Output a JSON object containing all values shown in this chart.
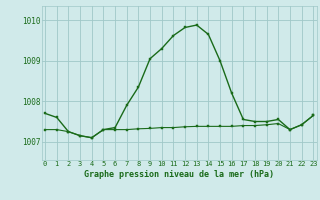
{
  "x": [
    0,
    1,
    2,
    3,
    4,
    5,
    6,
    7,
    8,
    9,
    10,
    11,
    12,
    13,
    14,
    15,
    16,
    17,
    18,
    19,
    20,
    21,
    22,
    23
  ],
  "y_main": [
    1007.7,
    1007.6,
    1007.25,
    1007.15,
    1007.1,
    1007.3,
    1007.35,
    1007.9,
    1008.35,
    1009.05,
    1009.3,
    1009.62,
    1009.82,
    1009.88,
    1009.65,
    1009.0,
    1008.2,
    1007.55,
    1007.5,
    1007.5,
    1007.55,
    1007.3,
    1007.42,
    1007.65
  ],
  "y_flat": [
    1007.3,
    1007.3,
    1007.25,
    1007.15,
    1007.1,
    1007.3,
    1007.3,
    1007.3,
    1007.32,
    1007.33,
    1007.35,
    1007.35,
    1007.37,
    1007.38,
    1007.38,
    1007.38,
    1007.38,
    1007.4,
    1007.4,
    1007.42,
    1007.45,
    1007.3,
    1007.42,
    1007.65
  ],
  "line_color": "#1a6b1a",
  "marker_color": "#1a6b1a",
  "bg_color": "#d0eaea",
  "grid_color": "#a0c8c8",
  "tick_label_color": "#1a6b1a",
  "xlabel": "Graphe pression niveau de la mer (hPa)",
  "ylabel_ticks": [
    1007,
    1008,
    1009,
    1010
  ],
  "ylim": [
    1006.55,
    1010.35
  ],
  "xlim": [
    -0.3,
    23.3
  ],
  "xticks": [
    0,
    1,
    2,
    3,
    4,
    5,
    6,
    7,
    8,
    9,
    10,
    11,
    12,
    13,
    14,
    15,
    16,
    17,
    18,
    19,
    20,
    21,
    22,
    23
  ],
  "font_name": "monospace"
}
